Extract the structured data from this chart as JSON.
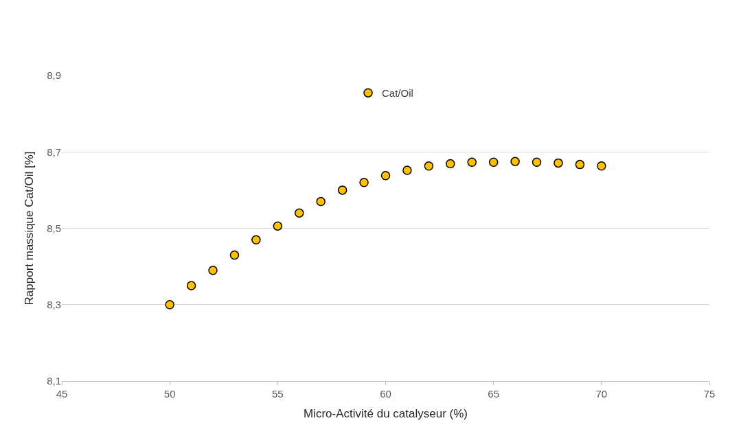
{
  "chart_data": {
    "type": "scatter",
    "xlabel": "Micro-Activité du catalyseur (%)",
    "ylabel": "Rapport massique Cat/Oil [%]",
    "x": [
      50,
      51,
      52,
      53,
      54,
      55,
      56,
      57,
      58,
      59,
      60,
      61,
      62,
      63,
      64,
      65,
      66,
      67,
      68,
      69,
      70
    ],
    "series": [
      {
        "name": "Cat/Oil",
        "color": "#ffc000",
        "values": [
          8.3,
          8.35,
          8.39,
          8.43,
          8.47,
          8.506,
          8.54,
          8.57,
          8.6,
          8.62,
          8.638,
          8.652,
          8.663,
          8.669,
          8.673,
          8.673,
          8.675,
          8.673,
          8.671,
          8.667,
          8.663
        ]
      }
    ],
    "xlim": [
      45,
      75
    ],
    "xticks": [
      45,
      50,
      55,
      60,
      65,
      70,
      75
    ],
    "ylim": [
      8.1,
      8.9
    ],
    "yticks": [
      {
        "value": 8.1,
        "label": "8,1"
      },
      {
        "value": 8.3,
        "label": "8,3"
      },
      {
        "value": 8.5,
        "label": "8,5"
      },
      {
        "value": 8.7,
        "label": "8,7"
      },
      {
        "value": 8.9,
        "label": "8,9"
      }
    ],
    "grid": "y",
    "legend": "top",
    "marker": "circle"
  }
}
